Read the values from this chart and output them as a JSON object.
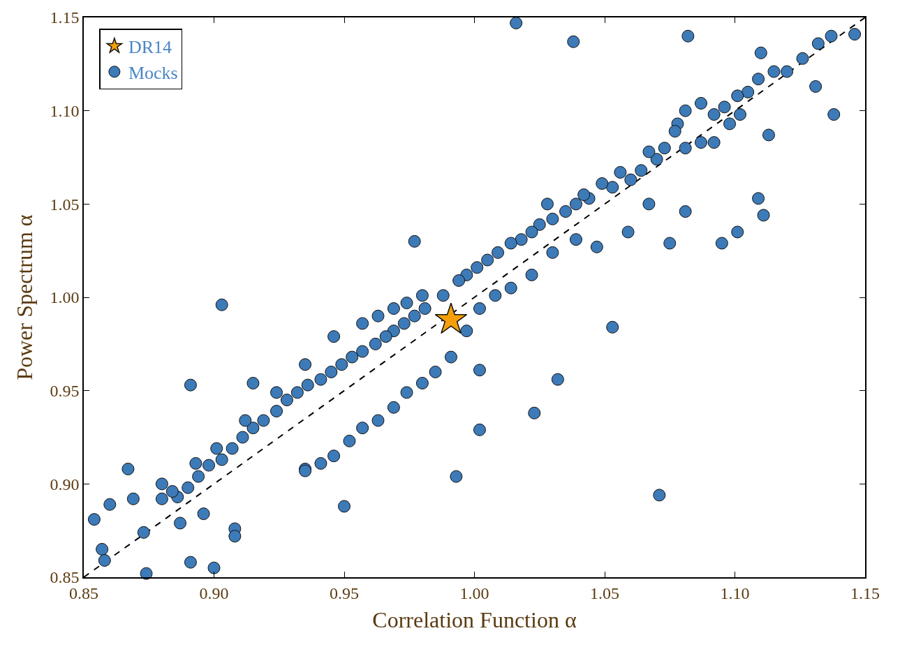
{
  "chart_data": {
    "type": "scatter",
    "xlabel": "Correlation Function α",
    "ylabel": "Power Spectrum α",
    "xlim": [
      0.85,
      1.15
    ],
    "ylim": [
      0.85,
      1.15
    ],
    "xticks": [
      {
        "value": 0.85,
        "label": "0.85"
      },
      {
        "value": 0.9,
        "label": "0.90"
      },
      {
        "value": 0.95,
        "label": "0.95"
      },
      {
        "value": 1.0,
        "label": "1.00"
      },
      {
        "value": 1.05,
        "label": "1.05"
      },
      {
        "value": 1.1,
        "label": "1.10"
      },
      {
        "value": 1.15,
        "label": "1.15"
      }
    ],
    "yticks": [
      {
        "value": 0.85,
        "label": "0.85"
      },
      {
        "value": 0.9,
        "label": "0.90"
      },
      {
        "value": 0.95,
        "label": "0.95"
      },
      {
        "value": 1.0,
        "label": "1.00"
      },
      {
        "value": 1.05,
        "label": "1.05"
      },
      {
        "value": 1.1,
        "label": "1.10"
      },
      {
        "value": 1.15,
        "label": "1.15"
      }
    ],
    "legend": "top left",
    "series": [
      {
        "type": "line",
        "color": "#000000",
        "line_style": "dashed",
        "marker": "none",
        "x": [
          0.85,
          1.15
        ],
        "values": [
          0.85,
          1.15
        ]
      },
      {
        "name": "Mocks",
        "marker": "circle",
        "color": "#3d7ab8",
        "x": [
          1.146,
          1.137,
          1.132,
          1.126,
          1.12,
          1.115,
          1.109,
          1.105,
          1.101,
          1.096,
          1.092,
          1.087,
          1.081,
          1.078,
          1.138,
          1.113,
          1.131,
          1.102,
          1.098,
          1.092,
          1.087,
          1.081,
          1.077,
          1.073,
          1.07,
          1.067,
          1.064,
          1.06,
          1.056,
          1.053,
          1.049,
          1.044,
          1.042,
          1.039,
          1.035,
          1.03,
          1.028,
          1.025,
          1.022,
          1.018,
          1.014,
          1.009,
          1.005,
          1.001,
          0.997,
          0.994,
          0.988,
          0.981,
          0.977,
          0.973,
          0.969,
          0.966,
          0.962,
          0.957,
          0.953,
          0.949,
          0.945,
          0.941,
          0.936,
          0.932,
          0.928,
          0.924,
          0.919,
          0.915,
          0.911,
          0.907,
          0.903,
          0.898,
          0.894,
          0.89,
          0.886,
          1.109,
          1.111,
          1.101,
          1.095,
          1.081,
          1.067,
          1.059,
          1.047,
          1.039,
          1.03,
          1.022,
          1.014,
          1.008,
          1.002,
          0.997,
          0.991,
          0.985,
          0.98,
          0.974,
          0.969,
          0.963,
          0.957,
          0.952,
          0.946,
          0.941,
          0.935,
          0.98,
          0.974,
          0.969,
          0.963,
          0.957,
          0.946,
          0.935,
          0.924,
          0.912,
          0.901,
          0.893,
          0.884,
          1.016,
          1.038,
          1.082,
          1.11,
          0.903,
          0.891,
          0.915,
          0.977,
          1.053,
          1.002,
          1.002,
          1.023,
          1.032,
          1.071,
          0.993,
          0.95,
          0.935,
          0.908,
          0.908,
          0.9,
          0.891,
          0.854,
          0.857,
          0.858,
          0.86,
          0.867,
          0.869,
          0.873,
          0.874,
          0.88,
          0.88,
          0.887,
          0.896,
          1.075
        ],
        "values": [
          1.141,
          1.14,
          1.136,
          1.128,
          1.121,
          1.121,
          1.117,
          1.11,
          1.108,
          1.102,
          1.098,
          1.104,
          1.1,
          1.093,
          1.098,
          1.087,
          1.113,
          1.098,
          1.093,
          1.083,
          1.083,
          1.08,
          1.089,
          1.08,
          1.074,
          1.078,
          1.068,
          1.063,
          1.067,
          1.059,
          1.061,
          1.053,
          1.055,
          1.05,
          1.046,
          1.042,
          1.05,
          1.039,
          1.035,
          1.031,
          1.029,
          1.024,
          1.02,
          1.016,
          1.012,
          1.009,
          1.001,
          0.994,
          0.99,
          0.986,
          0.982,
          0.979,
          0.975,
          0.971,
          0.968,
          0.964,
          0.96,
          0.956,
          0.953,
          0.949,
          0.945,
          0.939,
          0.934,
          0.93,
          0.925,
          0.919,
          0.913,
          0.91,
          0.904,
          0.898,
          0.893,
          1.053,
          1.044,
          1.035,
          1.029,
          1.046,
          1.05,
          1.035,
          1.027,
          1.031,
          1.024,
          1.012,
          1.005,
          1.001,
          0.994,
          0.982,
          0.968,
          0.96,
          0.954,
          0.949,
          0.941,
          0.934,
          0.93,
          0.923,
          0.915,
          0.911,
          0.908,
          1.001,
          0.997,
          0.994,
          0.99,
          0.986,
          0.979,
          0.964,
          0.949,
          0.934,
          0.919,
          0.911,
          0.896,
          1.147,
          1.137,
          1.14,
          1.131,
          0.996,
          0.953,
          0.954,
          1.03,
          0.984,
          0.961,
          0.929,
          0.938,
          0.956,
          0.894,
          0.904,
          0.888,
          0.907,
          0.876,
          0.872,
          0.855,
          0.858,
          0.881,
          0.865,
          0.859,
          0.889,
          0.908,
          0.892,
          0.874,
          0.852,
          0.9,
          0.892,
          0.879,
          0.884,
          1.029
        ]
      },
      {
        "name": "DR14",
        "marker": "star",
        "color": "#f5a00a",
        "x": [
          0.991
        ],
        "values": [
          0.988
        ]
      }
    ]
  }
}
